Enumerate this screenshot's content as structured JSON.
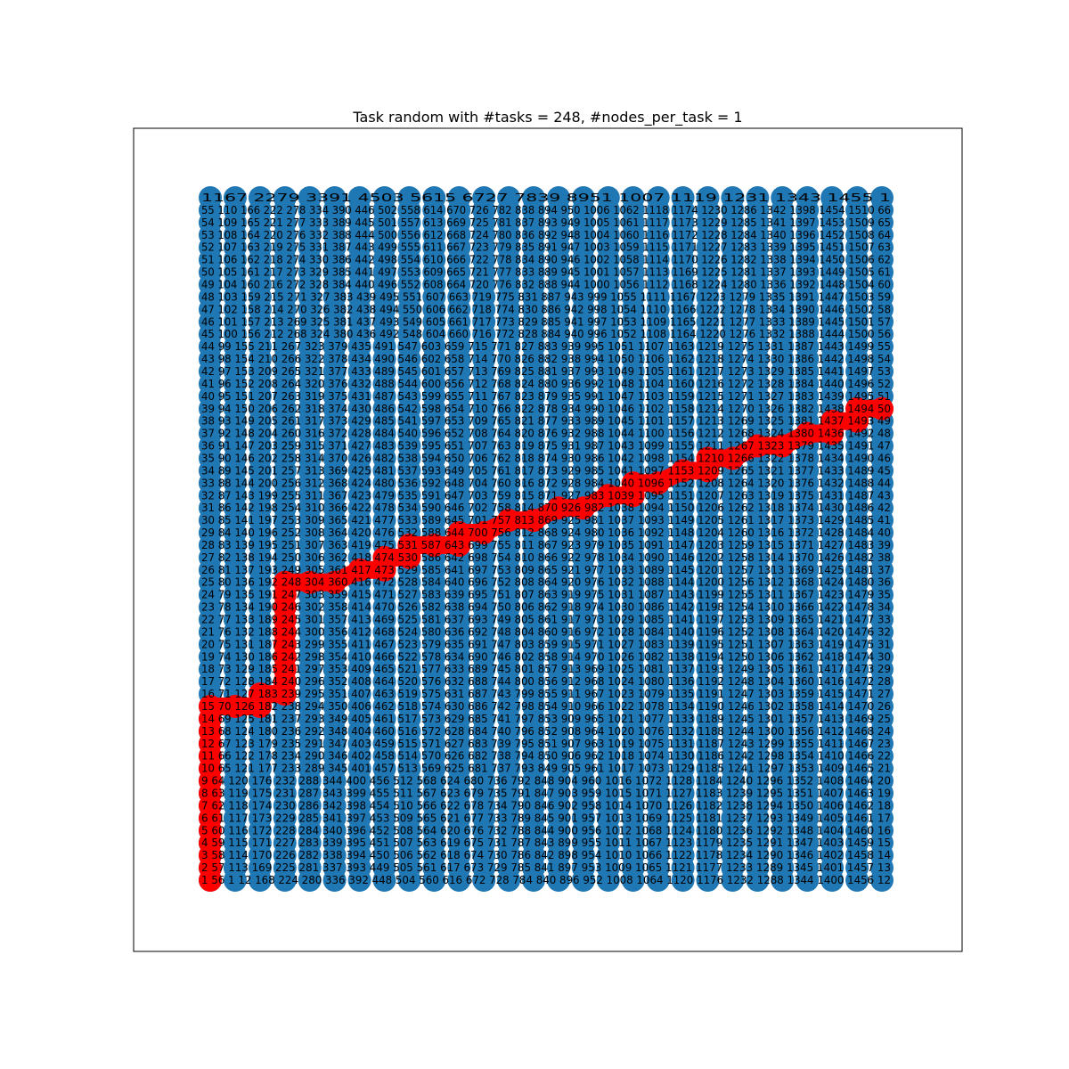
{
  "chart_data": {
    "type": "scatter",
    "title": "Task random with #tasks = 248, #nodes_per_task = 1",
    "grid_rows": 28,
    "grid_cols": 28,
    "node_color": "#1f77b4",
    "path_color": "#ff0000",
    "axes_visible": false,
    "path_nodes": [
      [
        0,
        0
      ],
      [
        0,
        1
      ],
      [
        0,
        2
      ],
      [
        0,
        3
      ],
      [
        0,
        4
      ],
      [
        0,
        5
      ],
      [
        0,
        6
      ],
      [
        0,
        7
      ],
      [
        0,
        8
      ],
      [
        0,
        9
      ],
      [
        0,
        10
      ],
      [
        0,
        11
      ],
      [
        0,
        12
      ],
      [
        0,
        13
      ],
      [
        0,
        14
      ],
      [
        1,
        14
      ],
      [
        2,
        14
      ],
      [
        2,
        15
      ],
      [
        3,
        15
      ],
      [
        3,
        16
      ],
      [
        3,
        17
      ],
      [
        3,
        18
      ],
      [
        3,
        19
      ],
      [
        3,
        20
      ],
      [
        3,
        21
      ],
      [
        3,
        22
      ],
      [
        3,
        23
      ],
      [
        3,
        24
      ],
      [
        4,
        24
      ],
      [
        5,
        24
      ],
      [
        6,
        25
      ],
      [
        7,
        25
      ],
      [
        7,
        26
      ],
      [
        8,
        26
      ],
      [
        8,
        27
      ],
      [
        9,
        27
      ],
      [
        10,
        27
      ],
      [
        10,
        28
      ],
      [
        11,
        28
      ],
      [
        12,
        29
      ],
      [
        13,
        29
      ],
      [
        14,
        30
      ],
      [
        15,
        30
      ],
      [
        16,
        31
      ],
      [
        17,
        31
      ],
      [
        17,
        32
      ],
      [
        18,
        32
      ],
      [
        19,
        33
      ],
      [
        20,
        33
      ],
      [
        20,
        34
      ],
      [
        21,
        34
      ],
      [
        22,
        35
      ],
      [
        23,
        35
      ],
      [
        24,
        36
      ],
      [
        25,
        36
      ],
      [
        25,
        37
      ],
      [
        26,
        37
      ],
      [
        26,
        38
      ],
      [
        27,
        38
      ]
    ],
    "label_rows": [
      {
        "row": 0,
        "text": "1 56 1 12 168 224 280 336 392 448 504 560 616 672 728 784 840 896 952 1008 1064 1120 1176 1232 1288 1344 1400 1456 12"
      },
      {
        "row": 1,
        "text": "2 57 113 169 225 281 337 393 449 505 561 617 673 729 785 841 897 953 1009 1065 1121 1177 1233 1289 1345 1401 1457 13"
      },
      {
        "row": 2,
        "text": "3 58 114 170 226 282 338 394 450 506 562 618 674 730 786 842 898 954 1010 1066 1122 1178 1234 1290 1346 1402 1458 14"
      },
      {
        "row": 3,
        "text": "4 59 115 171 227 283 339 395 451 507 563 619 675 731 787 843 899 955 1011 1067 1123 1179 1235 1291 1347 1403 1459 15"
      },
      {
        "row": 4,
        "text": "5 60 116 172 228 284 340 396 452 508 564 620 676 732 788 844 900 956 1012 1068 1124 1180 1236 1292 1348 1404 1460 16"
      },
      {
        "row": 5,
        "text": "6 61 117 173 229 285 341 397 453 509 565 621 677 733 789 845 901 957 1013 1069 1125 1181 1237 1293 1349 1405 1461 17"
      },
      {
        "row": 6,
        "text": "7 62 118 174 230 286 342 398 454 510 566 622 678 734 790 846 902 958 1014 1070 1126 1182 1238 1294 1350 1406 1462 18"
      },
      {
        "row": 7,
        "text": "8 63 119 175 231 287 343 399 455 511 567 623 679 735 791 847 903 959 1015 1071 1127 1183 1239 1295 1351 1407 1463 19"
      },
      {
        "row": 8,
        "text": "9 64 120 176 232 288 344 400 456 512 568 624 680 736 792 848 904 960 1016 1072 1128 1184 1240 1296 1352 1408 1464 20"
      },
      {
        "row": 9,
        "text": "10 65 121 177 233 289 345 401 457 513 569 625 681 737 793 849 905 961 1017 1073 1129 1185 1241 1297 1353 1409 1465 21"
      },
      {
        "row": 10,
        "text": "11 66 122 178 234 290 346 402 458 514 570 626 682 738 794 850 906 962 1018 1074 1130 1186 1242 1298 1354 1410 1466 22"
      },
      {
        "row": 11,
        "text": "12 67 123 179 235 291 347 403 459 515 571 627 683 739 795 851 907 963 1019 1075 1131 1187 1243 1299 1355 1411 1467 23"
      },
      {
        "row": 12,
        "text": "13 68 124 180 236 292 348 404 460 516 572 628 684 740 796 852 908 964 1020 1076 1132 1188 1244 1300 1356 1412 1468 24"
      },
      {
        "row": 13,
        "text": "14 69 125 181 237 293 349 405 461 517 573 629 685 741 797 853 909 965 1021 1077 1133 1189 1245 1301 1357 1413 1469 25"
      },
      {
        "row": 14,
        "text": "15 70 126 182 238 294 350 406 462 518 574 630 686 742 798 854 910 966 1022 1078 1134 1190 1246 1302 1358 1414 1470 26"
      },
      {
        "row": 15,
        "text": "16 71 127 183 239 295 351 407 463 519 575 631 687 743 799 855 911 967 1023 1079 1135 1191 1247 1303 1359 1415 1471 27"
      },
      {
        "row": 16,
        "text": "17 72 128 184 240 296 352 408 464 520 576 632 688 744 800 856 912 968 1024 1080 1136 1192 1248 1304 1360 1416 1472 28"
      },
      {
        "row": 17,
        "text": "18 73 129 185 241 297 353 409 465 521 577 633 689 745 801 857 913 969 1025 1081 1137 1193 1249 1305 1361 1417 1473 29"
      },
      {
        "row": 18,
        "text": "19 74 130 186 242 298 354 410 466 522 578 634 690 746 802 858 914 970 1026 1082 1138 1194 1250 1306 1362 1418 1474 30"
      },
      {
        "row": 19,
        "text": "20 75 131 187 243 299 355 411 467 523 579 635 691 747 803 859 915 971 1027 1083 1139 1195 1251 1307 1363 1419 1475 31"
      },
      {
        "row": 20,
        "text": "21 76 132 188 244 300 356 412 468 524 580 636 692 748 804 860 916 972 1028 1084 1140 1196 1252 1308 1364 1420 1476 32"
      },
      {
        "row": 21,
        "text": "22 77 133 189 245 301 357 413 469 525 581 637 693 749 805 861 917 973 1029 1085 1141 1197 1253 1309 1365 1421 1477 33"
      },
      {
        "row": 22,
        "text": "23 78 134 190 246 302 358 414 470 526 582 638 694 750 806 862 918 974 1030 1086 1142 1198 1254 1310 1366 1422 1478 34"
      },
      {
        "row": 23,
        "text": "24 79 135 191 247 303 359 415 471 527 583 639 695 751 807 863 919 975 1031 1087 1143 1199 1255 1311 1367 1423 1479 35"
      },
      {
        "row": 24,
        "text": "25 80 136 192 248 304 360 416 472 528 584 640 696 752 808 864 920 976 1032 1088 1144 1200 1256 1312 1368 1424 1480 36"
      },
      {
        "row": 25,
        "text": "26 81 137 193 249 305 361 417 473 529 585 641 697 753 809 865 921 977 1033 1089 1145 1201 1257 1313 1369 1425 1481 37"
      },
      {
        "row": 26,
        "text": "27 82 138 194 250 306 362 418 474 530 586 642 698 754 810 866 922 978 1034 1090 1146 1202 1258 1314 1370 1426 1482 38"
      },
      {
        "row": 27,
        "text": "28 83 139 195 251 307 363 419 475 531 587 643 699 755 811 867 923 979 1035 1091 1147 1203 1259 1315 1371 1427 1483 39"
      },
      {
        "row": 28,
        "text": "29 84 140 196 252 308 364 420 476 532 588 644 700 756 812 868 924 980 1036 1092 1148 1204 1260 1316 1372 1428 1484 40"
      },
      {
        "row": 29,
        "text": "30 85 141 197 253 309 365 421 477 533 589 645 701 757 813 869 925 981 1037 1093 1149 1205 1261 1317 1373 1429 1485 41"
      },
      {
        "row": 30,
        "text": "31 86 142 198 254 310 366 422 478 534 590 646 702 758 814 870 926 982 1038 1094 1150 1206 1262 1318 1374 1430 1486 42"
      },
      {
        "row": 31,
        "text": "32 87 143 199 255 311 367 423 479 535 591 647 703 759 815 871 927 983 1039 1095 1151 1207 1263 1319 1375 1431 1487 43"
      },
      {
        "row": 32,
        "text": "33 88 144 200 256 312 368 424 480 536 592 648 704 760 816 872 928 984 1040 1096 1152 1208 1264 1320 1376 1432 1488 44"
      },
      {
        "row": 33,
        "text": "34 89 145 201 257 313 369 425 481 537 593 649 705 761 817 873 929 985 1041 1097 1153 1209 1265 1321 1377 1433 1489 45"
      },
      {
        "row": 34,
        "text": "35 90 146 202 258 314 370 426 482 538 594 650 706 762 818 874 930 986 1042 1098 1154 1210 1266 1322 1378 1434 1490 46"
      },
      {
        "row": 35,
        "text": "36 91 147 203 259 315 371 427 483 539 595 651 707 763 819 875 931 987 1043 1099 1155 1211 1267 1323 1379 1435 1491 47"
      },
      {
        "row": 36,
        "text": "37 92 148 204 260 316 372 428 484 540 596 652 708 764 820 876 932 988 1044 1100 1156 1212 1268 1324 1380 1436 1492 48"
      },
      {
        "row": 37,
        "text": "38 93 149 205 261 317 373 429 485 541 597 653 709 765 821 877 933 989 1045 1101 1157 1213 1269 1325 1381 1437 1493 49"
      },
      {
        "row": 38,
        "text": "39 94 150 206 262 318 374 430 486 542 598 654 710 766 822 878 934 990 1046 1102 1158 1214 1270 1326 1382 1438 1494 50"
      },
      {
        "row": 39,
        "text": "40 95 151 207 263 319 375 431 487 543 599 655 711 767 823 879 935 991 1047 1103 1159 1215 1271 1327 1383 1439 1495 51"
      },
      {
        "row": 40,
        "text": "41 96 152 208 264 320 376 432 488 544 600 656 712 768 824 880 936 992 1048 1104 1160 1216 1272 1328 1384 1440 1496 52"
      },
      {
        "row": 41,
        "text": "42 97 153 209 265 321 377 433 489 545 601 657 713 769 825 881 937 993 1049 1105 1161 1217 1273 1329 1385 1441 1497 53"
      },
      {
        "row": 42,
        "text": "43 98 154 210 266 322 378 434 490 546 602 658 714 770 826 882 938 994 1050 1106 1162 1218 1274 1330 1386 1442 1498 54"
      },
      {
        "row": 43,
        "text": "44 99 155 211 267 323 379 435 491 547 603 659 715 771 827 883 939 995 1051 1107 1163 1219 1275 1331 1387 1443 1499 55"
      },
      {
        "row": 44,
        "text": "45 100 156 212 268 324 380 436 492 548 604 660 716 772 828 884 940 996 1052 1108 1164 1220 1276 1332 1388 1444 1500 56"
      },
      {
        "row": 45,
        "text": "46 101 157 213 269 325 381 437 493 549 605 661 717 773 829 885 941 997 1053 1109 1165 1221 1277 1333 1389 1445 1501 57"
      },
      {
        "row": 46,
        "text": "47 102 158 214 270 326 382 438 494 550 606 662 718 774 830 886 942 998 1054 1110 1166 1222 1278 1334 1390 1446 1502 58"
      },
      {
        "row": 47,
        "text": "48 103 159 215 271 327 383 439 495 551 607 663 719 775 831 887 943 999 1055 1111 1167 1223 1279 1335 1391 1447 1503 59"
      },
      {
        "row": 48,
        "text": "49 104 160 216 272 328 384 440 496 552 608 664 720 776 832 888 944 1000 1056 1112 1168 1224 1280 1336 1392 1448 1504 60"
      },
      {
        "row": 49,
        "text": "50 105 161 217 273 329 385 441 497 553 609 665 721 777 833 889 945 1001 1057 1113 1169 1225 1281 1337 1393 1449 1505 61"
      },
      {
        "row": 50,
        "text": "51 106 162 218 274 330 386 442 498 554 610 666 722 778 834 890 946 1002 1058 1114 1170 1226 1282 1338 1394 1450 1506 62"
      },
      {
        "row": 51,
        "text": "52 107 163 219 275 331 387 443 499 555 611 667 723 779 835 891 947 1003 1059 1115 1171 1227 1283 1339 1395 1451 1507 63"
      },
      {
        "row": 52,
        "text": "53 108 164 220 276 332 388 444 500 556 612 668 724 780 836 892 948 1004 1060 1116 1172 1228 1284 1340 1396 1452 1508 64"
      },
      {
        "row": 53,
        "text": "54 109 165 221 277 333 389 445 501 557 613 669 725 781 837 893 949 1005 1061 1117 1173 1229 1285 1341 1397 1453 1509 65"
      },
      {
        "row": 54,
        "text": "55 110 166 222 278 334 390 446 502 558 614 670 726 782 838 894 950 1006 1062 1118 1174 1230 1286 1342 1398 1454 1510 66"
      },
      {
        "row": 55,
        "text": "1167 2279 3391 4503 5615 6727 7839 8951 1007 1119 1231 1343 1455 1"
      }
    ]
  }
}
